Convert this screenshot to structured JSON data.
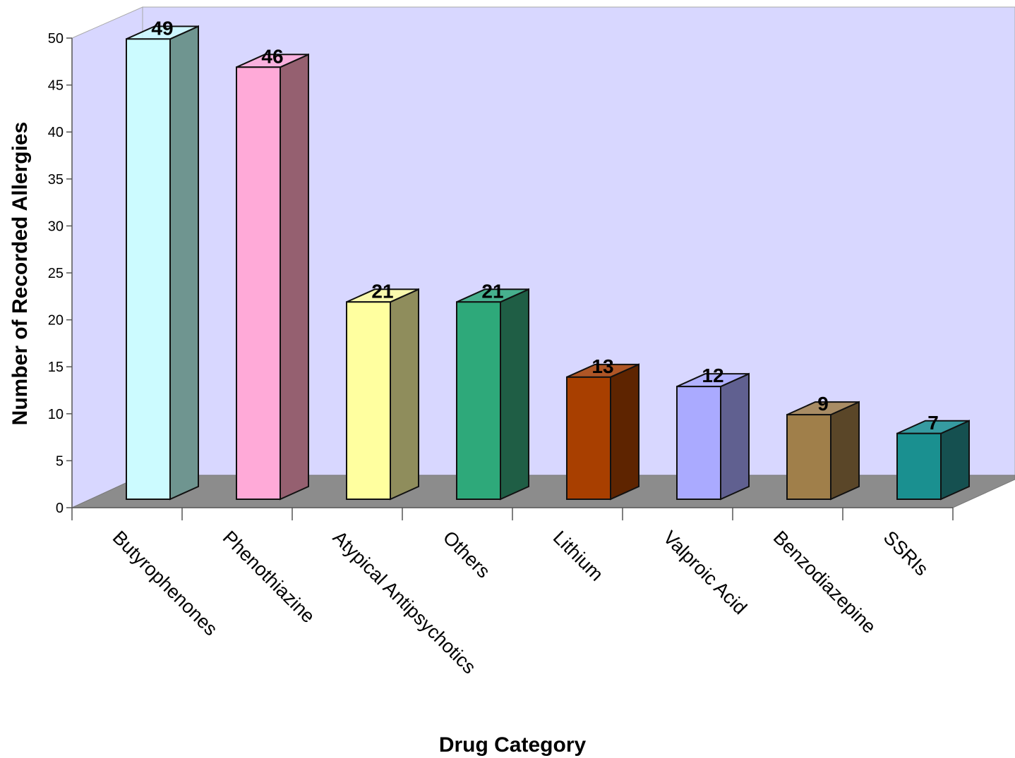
{
  "chart_data": {
    "type": "bar",
    "style": "3d",
    "title": "",
    "xlabel": "Drug Category",
    "ylabel": "Number of Recorded Allergies",
    "ylim": [
      0,
      50
    ],
    "yticks": [
      0,
      5,
      10,
      15,
      20,
      25,
      30,
      35,
      40,
      45,
      50
    ],
    "grid": false,
    "legend": "none",
    "categories": [
      "Butyrophenones",
      "Phenothiazine",
      "Atypical Antipsychotics",
      "Others",
      "Lithium",
      "Valproic Acid",
      "Benzodiazepine",
      "SSRIs"
    ],
    "values": [
      49,
      46,
      21,
      21,
      13,
      12,
      9,
      7
    ],
    "colors": [
      "#ccfbff",
      "#ffaad8",
      "#ffff9f",
      "#2ea97a",
      "#a83f00",
      "#aaaaff",
      "#a07f4a",
      "#1a9090"
    ],
    "side_colors": [
      "#6f9590",
      "#956070",
      "#8f8d5c",
      "#1f5e45",
      "#5e2400",
      "#606090",
      "#5a4628",
      "#155050"
    ],
    "wall_color": "#d8d7ff",
    "floor_color": "#8c8c8c"
  }
}
